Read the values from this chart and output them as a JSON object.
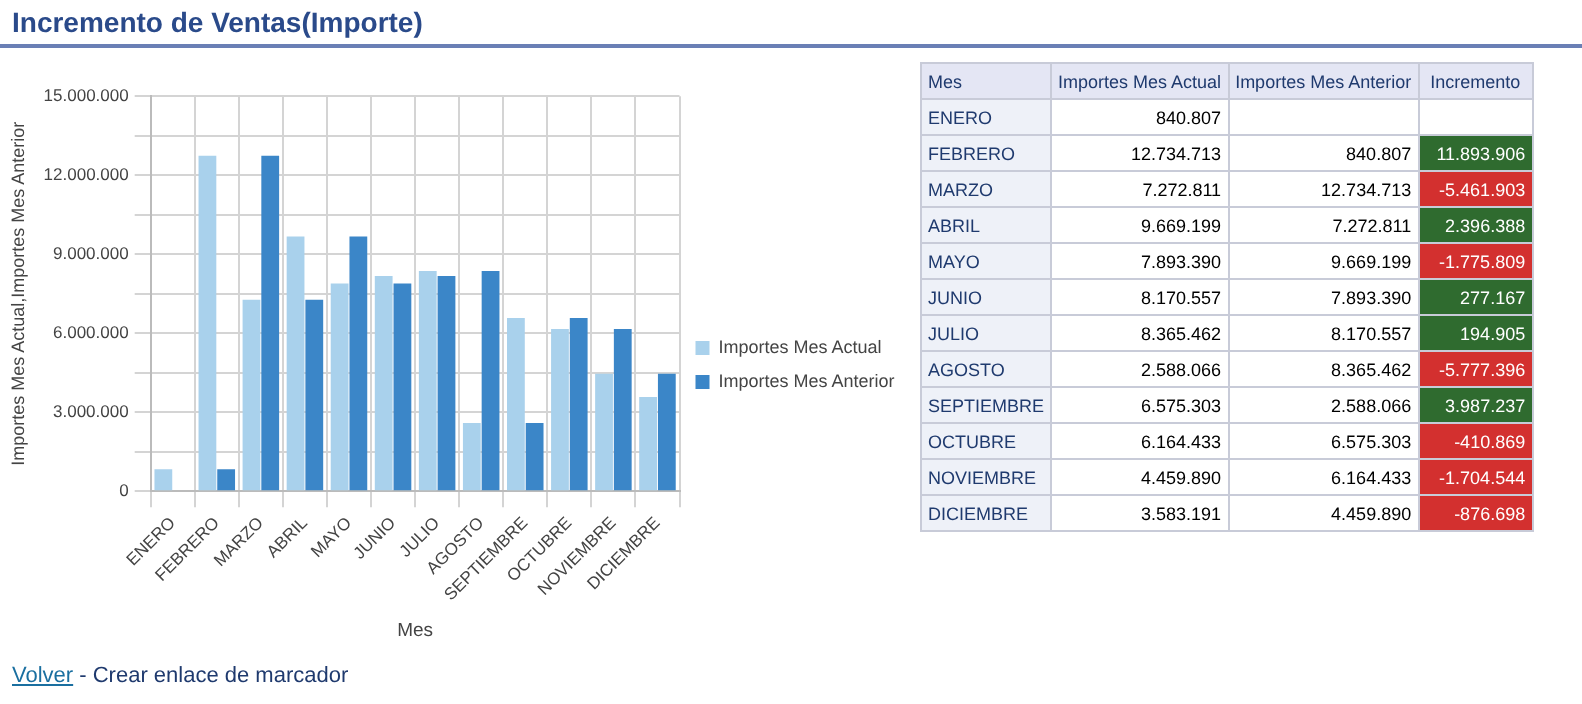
{
  "chart_data": [
    {
      "type": "bar",
      "title": "Incremento de Ventas(Importe)",
      "xlabel": "Mes",
      "ylabel": "Importes Mes Actual,Importes Mes Anterior",
      "categories": [
        "ENERO",
        "FEBRERO",
        "MARZO",
        "ABRIL",
        "MAYO",
        "JUNIO",
        "JULIO",
        "AGOSTO",
        "SEPTIEMBRE",
        "OCTUBRE",
        "NOVIEMBRE",
        "DICIEMBRE"
      ],
      "series": [
        {
          "name": "Importes Mes Actual",
          "color": "#a9d1ec",
          "values": [
            840807,
            12734713,
            7272811,
            9669199,
            7893390,
            8170557,
            8365462,
            2588066,
            6575303,
            6164433,
            4459890,
            3583191
          ]
        },
        {
          "name": "Importes Mes Anterior",
          "color": "#3b86c8",
          "values": [
            null,
            840807,
            12734713,
            7272811,
            9669199,
            7893390,
            8170557,
            8365462,
            2588066,
            6575303,
            6164433,
            4459890
          ]
        }
      ],
      "ylim": [
        0,
        15000000
      ],
      "yticks": [
        {
          "value": 0,
          "label": "0"
        },
        {
          "value": 1500000,
          "label": null
        },
        {
          "value": 3000000,
          "label": "3.000.000"
        },
        {
          "value": 4500000,
          "label": null
        },
        {
          "value": 6000000,
          "label": "6.000.000"
        },
        {
          "value": 7500000,
          "label": null
        },
        {
          "value": 9000000,
          "label": "9.000.000"
        },
        {
          "value": 10500000,
          "label": null
        },
        {
          "value": 12000000,
          "label": "12.000.000"
        },
        {
          "value": 13500000,
          "label": null
        },
        {
          "value": 15000000,
          "label": "15.000.000"
        }
      ],
      "grid": true,
      "legend": "right",
      "annotations": [
        "Volver",
        "- Crear enlace de marcador"
      ]
    },
    {
      "type": "other",
      "xlabel": "Mes",
      "categories": [
        "ENERO",
        "FEBRERO",
        "MARZO",
        "ABRIL",
        "MAYO",
        "JUNIO",
        "JULIO",
        "AGOSTO",
        "SEPTIEMBRE",
        "OCTUBRE",
        "NOVIEMBRE",
        "DICIEMBRE"
      ],
      "series": [
        {
          "name": "Importes Mes Actual",
          "values": [
            840807,
            12734713,
            7272811,
            9669199,
            7893390,
            8170557,
            8365462,
            2588066,
            6575303,
            6164433,
            4459890,
            3583191
          ],
          "value_labels": [
            "840.807",
            "12.734.713",
            "7.272.811",
            "9.669.199",
            "7.893.390",
            "8.170.557",
            "8.365.462",
            "2.588.066",
            "6.575.303",
            "6.164.433",
            "4.459.890",
            "3.583.191"
          ]
        },
        {
          "name": "Importes Mes Anterior",
          "values": [
            null,
            840807,
            12734713,
            7272811,
            9669199,
            7893390,
            8170557,
            8365462,
            2588066,
            6575303,
            6164433,
            4459890
          ],
          "value_labels": [
            null,
            "840.807",
            "12.734.713",
            "7.272.811",
            "9.669.199",
            "7.893.390",
            "8.170.557",
            "8.365.462",
            "2.588.066",
            "6.575.303",
            "6.164.433",
            "4.459.890"
          ]
        },
        {
          "name": "Incremento",
          "colors": [
            null,
            "#2f6b2f",
            "#d3302f",
            "#2f6b2f",
            "#d3302f",
            "#2f6b2f",
            "#2f6b2f",
            "#d3302f",
            "#2f6b2f",
            "#d3302f",
            "#d3302f",
            "#d3302f"
          ],
          "values": [
            null,
            11893906,
            -5461903,
            2396388,
            -1775809,
            277167,
            194905,
            -5777396,
            3987237,
            -410869,
            -1704544,
            -876698
          ],
          "value_labels": [
            null,
            "11.893.906",
            "-5.461.903",
            "2.396.388",
            "-1.775.809",
            "277.167",
            "194.905",
            "-5.777.396",
            "3.987.237",
            "-410.869",
            "-1.704.544",
            "-876.698"
          ]
        }
      ],
      "data_labels": true
    }
  ]
}
